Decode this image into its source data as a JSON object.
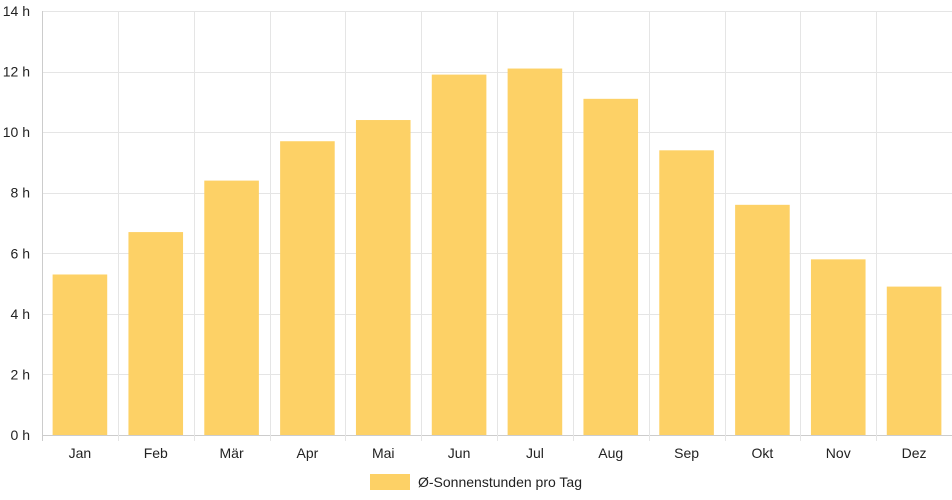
{
  "chart_data": {
    "type": "bar",
    "categories": [
      "Jan",
      "Feb",
      "Mär",
      "Apr",
      "Mai",
      "Jun",
      "Jul",
      "Aug",
      "Sep",
      "Okt",
      "Nov",
      "Dez"
    ],
    "series": [
      {
        "name": "Ø-Sonnenstunden pro Tag",
        "values": [
          5.3,
          6.7,
          8.4,
          9.7,
          10.4,
          11.9,
          12.1,
          11.1,
          9.4,
          7.6,
          5.8,
          4.9
        ]
      }
    ],
    "ylim": [
      0,
      14
    ],
    "yticks": [
      0,
      2,
      4,
      6,
      8,
      10,
      12,
      14
    ],
    "ytick_suffix": " h",
    "grid": true,
    "legend_position": "bottom",
    "colors": {
      "bar": "#fdd166",
      "grid": "#e5e5e5",
      "axis": "#cccccc",
      "text": "#222222"
    }
  }
}
